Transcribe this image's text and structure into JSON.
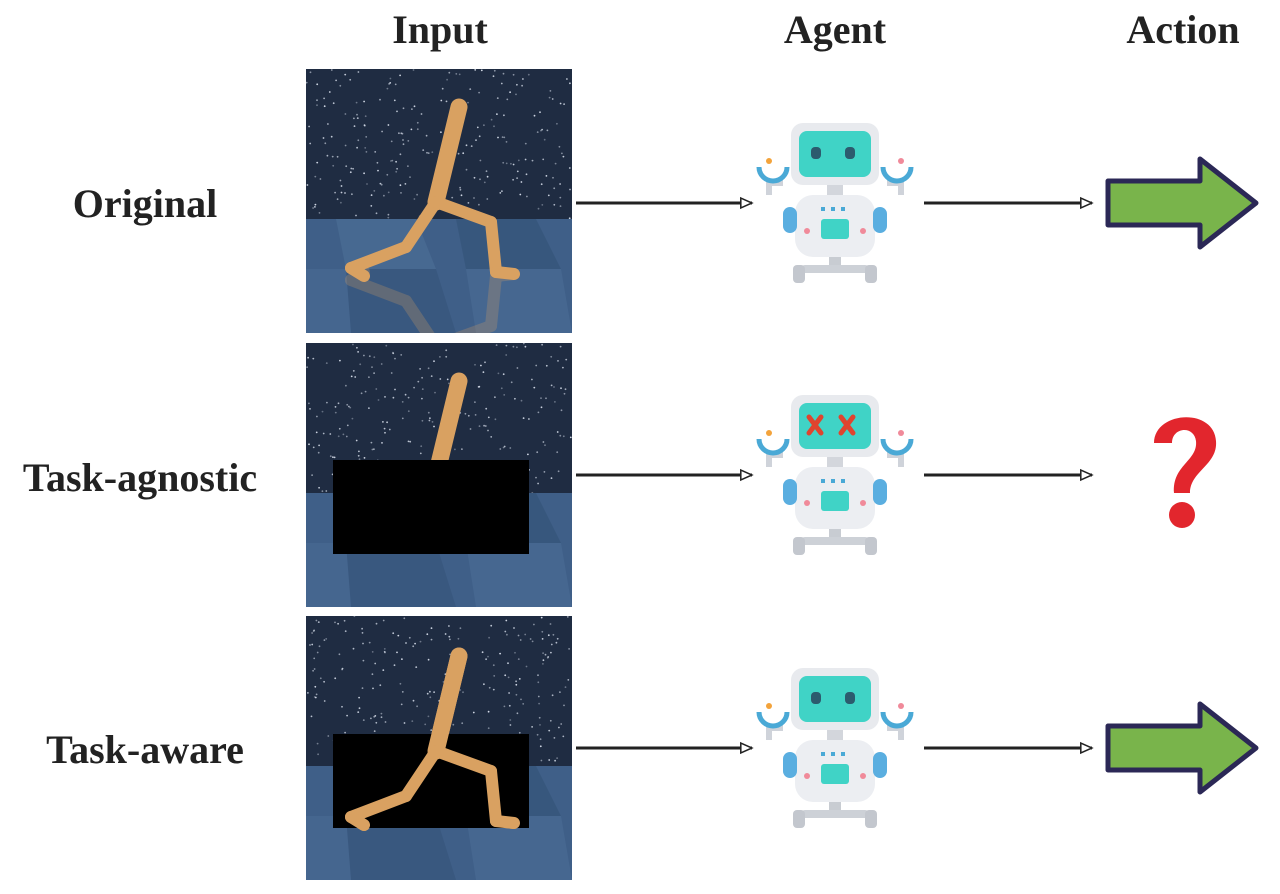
{
  "headers": {
    "input": "Input",
    "agent": "Agent",
    "action": "Action"
  },
  "rows": [
    {
      "label": "Original",
      "agent_state": "normal",
      "mask": "none",
      "action": "right-arrow-icon"
    },
    {
      "label": "Task-agnostic",
      "agent_state": "confused",
      "mask": "task-agnostic-occlusion",
      "action": "question-mark-icon"
    },
    {
      "label": "Task-aware",
      "agent_state": "normal",
      "mask": "task-aware-occlusion",
      "action": "right-arrow-icon"
    }
  ],
  "colors": {
    "background_sky": "#1f2c42",
    "floor": "#3f5f88",
    "walker": "#d9a161",
    "robot_screen": "#40d3c6",
    "arrow_fill": "#79b44b",
    "arrow_outline": "#2b2856",
    "question_mark": "#e2262d"
  }
}
